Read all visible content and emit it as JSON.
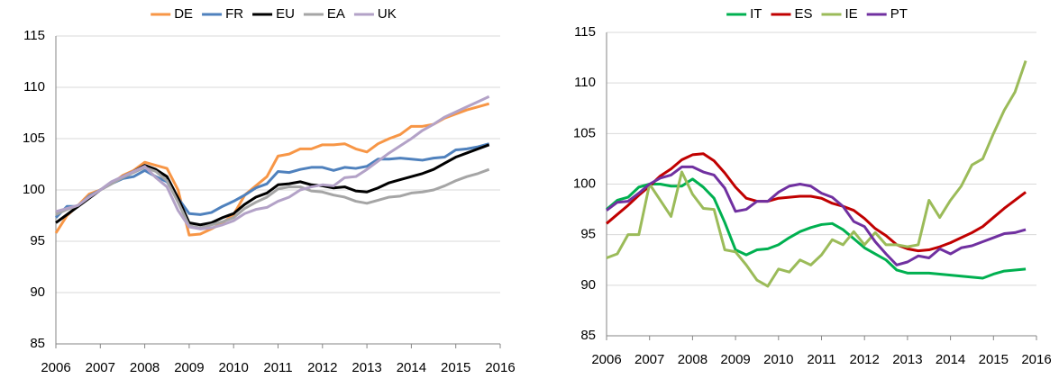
{
  "chart_data": [
    {
      "type": "line",
      "x": [
        2006,
        2006.25,
        2006.5,
        2006.75,
        2007,
        2007.25,
        2007.5,
        2007.75,
        2008,
        2008.25,
        2008.5,
        2008.75,
        2009,
        2009.25,
        2009.5,
        2009.75,
        2010,
        2010.25,
        2010.5,
        2010.75,
        2011,
        2011.25,
        2011.5,
        2011.75,
        2012,
        2012.25,
        2012.5,
        2012.75,
        2013,
        2013.25,
        2013.5,
        2013.75,
        2014,
        2014.25,
        2014.5,
        2014.75,
        2015,
        2015.25,
        2015.5,
        2015.75
      ],
      "xlim": [
        2006,
        2016
      ],
      "xticks": [
        2006,
        2007,
        2008,
        2009,
        2010,
        2011,
        2012,
        2013,
        2014,
        2015,
        2016
      ],
      "ylim": [
        85,
        115
      ],
      "yticks": [
        85,
        90,
        95,
        100,
        105,
        110,
        115
      ],
      "grid": true,
      "legend": "top",
      "series": [
        {
          "name": "DE",
          "color": "#f79646",
          "values": [
            95.8,
            97.5,
            98.5,
            99.6,
            100.0,
            100.6,
            101.4,
            101.9,
            102.7,
            102.4,
            102.1,
            100,
            95.6,
            95.7,
            96.2,
            96.8,
            97.6,
            99.5,
            100.4,
            101.3,
            103.3,
            103.5,
            104.0,
            104.0,
            104.4,
            104.4,
            104.5,
            104.0,
            103.7,
            104.5,
            105.0,
            105.4,
            106.2,
            106.2,
            106.4,
            107.0,
            107.4,
            107.8,
            108.1,
            108.4
          ]
        },
        {
          "name": "FR",
          "color": "#4f81bd",
          "values": [
            97.3,
            98.4,
            98.4,
            99.4,
            100.0,
            100.6,
            101.1,
            101.3,
            101.9,
            101.3,
            100.8,
            99.2,
            97.7,
            97.6,
            97.8,
            98.4,
            98.9,
            99.5,
            100.2,
            100.6,
            101.8,
            101.7,
            102.0,
            102.2,
            102.2,
            101.9,
            102.2,
            102.1,
            102.3,
            103.0,
            103.0,
            103.1,
            103.0,
            102.9,
            103.1,
            103.2,
            103.9,
            104.0,
            104.2,
            104.5
          ]
        },
        {
          "name": "EU",
          "color": "#000000",
          "values": [
            96.8,
            97.6,
            98.4,
            99.2,
            100.0,
            100.7,
            101.3,
            101.8,
            102.4,
            102.0,
            101.3,
            99.2,
            96.8,
            96.6,
            96.8,
            97.3,
            97.7,
            98.6,
            99.3,
            99.7,
            100.5,
            100.6,
            100.8,
            100.5,
            100.4,
            100.2,
            100.3,
            99.9,
            99.8,
            100.2,
            100.7,
            101.0,
            101.3,
            101.6,
            102.0,
            102.6,
            103.2,
            103.6,
            104.0,
            104.4
          ]
        },
        {
          "name": "EA",
          "color": "#a5a5a5",
          "values": [
            97.6,
            98.1,
            98.5,
            99.3,
            100.0,
            100.6,
            101.2,
            101.7,
            102.2,
            101.8,
            100.9,
            98.8,
            96.5,
            96.3,
            96.6,
            96.9,
            97.3,
            98.2,
            98.8,
            99.3,
            100.1,
            100.3,
            100.3,
            99.9,
            99.8,
            99.5,
            99.3,
            98.9,
            98.7,
            99.0,
            99.3,
            99.4,
            99.7,
            99.8,
            100.0,
            100.4,
            100.9,
            101.3,
            101.6,
            102.0
          ]
        },
        {
          "name": "UK",
          "color": "#b3a2c7",
          "values": [
            97.9,
            98.2,
            98.5,
            99.3,
            100.0,
            100.8,
            101.3,
            101.8,
            102.3,
            101.2,
            100.3,
            98.0,
            96.4,
            96.2,
            96.3,
            96.6,
            97.0,
            97.7,
            98.1,
            98.3,
            98.9,
            99.3,
            100.0,
            100.3,
            100.5,
            100.4,
            101.2,
            101.3,
            102.0,
            102.8,
            103.6,
            104.3,
            105.0,
            105.8,
            106.4,
            107.1,
            107.6,
            108.1,
            108.6,
            109.1
          ]
        }
      ]
    },
    {
      "type": "line",
      "x": [
        2006,
        2006.25,
        2006.5,
        2006.75,
        2007,
        2007.25,
        2007.5,
        2007.75,
        2008,
        2008.25,
        2008.5,
        2008.75,
        2009,
        2009.25,
        2009.5,
        2009.75,
        2010,
        2010.25,
        2010.5,
        2010.75,
        2011,
        2011.25,
        2011.5,
        2011.75,
        2012,
        2012.25,
        2012.5,
        2012.75,
        2013,
        2013.25,
        2013.5,
        2013.75,
        2014,
        2014.25,
        2014.5,
        2014.75,
        2015,
        2015.25,
        2015.5,
        2015.75
      ],
      "xlim": [
        2006,
        2016
      ],
      "xticks": [
        2006,
        2007,
        2008,
        2009,
        2010,
        2011,
        2012,
        2013,
        2014,
        2015,
        2016
      ],
      "ylim": [
        85,
        115
      ],
      "yticks": [
        85,
        90,
        95,
        100,
        105,
        110,
        115
      ],
      "grid": true,
      "legend": "top",
      "series": [
        {
          "name": "IT",
          "color": "#00b050",
          "values": [
            97.5,
            98.4,
            98.7,
            99.7,
            100.0,
            100.0,
            99.8,
            99.8,
            100.5,
            99.7,
            98.6,
            96.2,
            93.5,
            93.0,
            93.5,
            93.6,
            94.0,
            94.7,
            95.3,
            95.7,
            96.0,
            96.1,
            95.5,
            94.6,
            93.7,
            93.1,
            92.5,
            91.5,
            91.2,
            91.2,
            91.2,
            91.1,
            91.0,
            90.9,
            90.8,
            90.7,
            91.1,
            91.4,
            91.5,
            91.6
          ]
        },
        {
          "name": "ES",
          "color": "#c00000",
          "values": [
            96.1,
            97.0,
            97.9,
            98.9,
            99.8,
            100.8,
            101.5,
            102.4,
            102.9,
            103.0,
            102.3,
            101.1,
            99.7,
            98.6,
            98.3,
            98.3,
            98.6,
            98.7,
            98.8,
            98.8,
            98.6,
            98.1,
            97.8,
            97.4,
            96.6,
            95.6,
            94.9,
            94.0,
            93.6,
            93.4,
            93.5,
            93.8,
            94.2,
            94.7,
            95.2,
            95.8,
            96.7,
            97.6,
            98.4,
            99.2
          ]
        },
        {
          "name": "IE",
          "color": "#9bbb59",
          "values": [
            92.7,
            93.1,
            95.0,
            95.0,
            100.0,
            98.4,
            96.8,
            101.2,
            99.0,
            97.6,
            97.5,
            93.5,
            93.3,
            92.0,
            90.5,
            89.9,
            91.6,
            91.3,
            92.5,
            92.0,
            93.0,
            94.5,
            94.0,
            95.3,
            94.0,
            95.2,
            94.0,
            94.0,
            93.8,
            94.0,
            98.4,
            96.7,
            98.4,
            99.8,
            101.9,
            102.5,
            105.0,
            107.3,
            109.1,
            112.2
          ]
        },
        {
          "name": "PT",
          "color": "#7030a0",
          "values": [
            97.4,
            98.2,
            98.3,
            99.1,
            100.0,
            100.6,
            100.9,
            101.7,
            101.7,
            101.2,
            100.9,
            99.6,
            97.3,
            97.5,
            98.3,
            98.3,
            99.2,
            99.8,
            100.0,
            99.8,
            99.1,
            98.7,
            97.8,
            96.3,
            95.8,
            94.3,
            93.1,
            92.0,
            92.3,
            92.9,
            92.7,
            93.6,
            93.1,
            93.7,
            93.9,
            94.3,
            94.7,
            95.1,
            95.2,
            95.5
          ]
        }
      ]
    }
  ]
}
